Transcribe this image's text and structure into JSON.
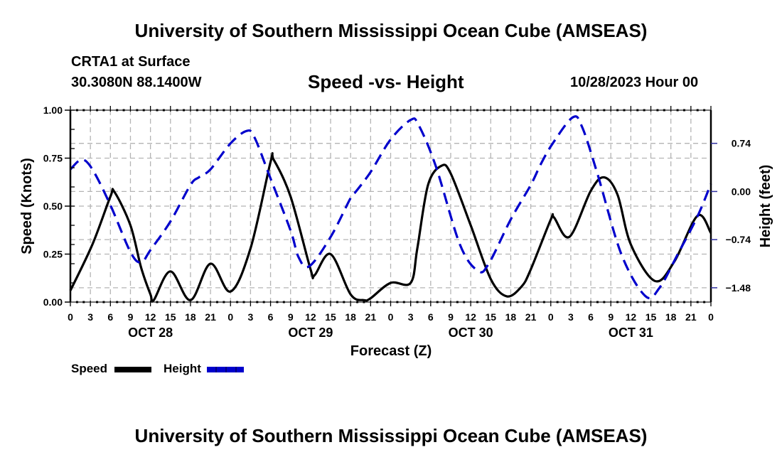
{
  "header": {
    "main_title": "University of Southern Mississippi Ocean Cube (AMSEAS)",
    "station": "CRTA1 at Surface",
    "coords": "30.3080N  88.1400W",
    "subtitle": "Speed -vs- Height",
    "datetime": "10/28/2023 Hour 00"
  },
  "footer": {
    "title": "University of Southern Mississippi Ocean Cube (AMSEAS)"
  },
  "colors": {
    "speed": "#000000",
    "height": "#0000cc",
    "grid": "#b4b4b4",
    "right_axis_ticks": "#3030a0"
  },
  "chart_data": {
    "type": "line",
    "title": "Speed -vs- Height",
    "xlabel": "Forecast (Z)",
    "ylabel": "Speed (Knots)",
    "y2label": "Height (feet)",
    "xlim": [
      0,
      96
    ],
    "ylim": [
      0,
      1.0
    ],
    "y2lim": [
      -1.7,
      1.25
    ],
    "x_tick_labels": [
      "0",
      "3",
      "6",
      "9",
      "12",
      "15",
      "18",
      "21",
      "0",
      "3",
      "6",
      "9",
      "12",
      "15",
      "18",
      "21",
      "0",
      "3",
      "6",
      "9",
      "12",
      "15",
      "18",
      "21",
      "0",
      "3",
      "6",
      "9",
      "12",
      "15",
      "18",
      "21",
      "0"
    ],
    "x_tick_hours": [
      0,
      3,
      6,
      9,
      12,
      15,
      18,
      21,
      24,
      27,
      30,
      33,
      36,
      39,
      42,
      45,
      48,
      51,
      54,
      57,
      60,
      63,
      66,
      69,
      72,
      75,
      78,
      81,
      84,
      87,
      90,
      93,
      96
    ],
    "date_labels": [
      {
        "label": "OCT 28",
        "hour": 12
      },
      {
        "label": "OCT 29",
        "hour": 36
      },
      {
        "label": "OCT 30",
        "hour": 60
      },
      {
        "label": "OCT 31",
        "hour": 84
      }
    ],
    "y_ticks": [
      {
        "label": "0.00",
        "value": 0.0
      },
      {
        "label": "0.25",
        "value": 0.25
      },
      {
        "label": "0.50",
        "value": 0.5
      },
      {
        "label": "0.75",
        "value": 0.75
      },
      {
        "label": "1.00",
        "value": 1.0
      }
    ],
    "y2_ticks": [
      {
        "label": "0.74",
        "value": 0.74
      },
      {
        "label": "0.00",
        "value": 0.0
      },
      {
        "label": "−0.74",
        "value": -0.74
      },
      {
        "label": "−1.48",
        "value": -1.48
      }
    ],
    "grid": true,
    "legend": {
      "placement": "bottom-left",
      "entries": [
        "Speed",
        "Height"
      ]
    },
    "series": [
      {
        "name": "Speed",
        "axis": "left",
        "units": "knots",
        "style": "solid",
        "x": [
          0,
          3.3,
          6,
          6.6,
          9,
          10.6,
          12,
          12.5,
          15,
          18,
          21,
          24,
          27,
          30,
          30.5,
          33,
          36,
          36.6,
          39,
          42,
          44,
          45,
          48,
          51,
          52,
          53.6,
          55.6,
          57,
          60,
          63,
          65.4,
          67.6,
          69,
          72,
          72.5,
          74.8,
          78,
          80,
          82,
          84,
          87.6,
          90.5,
          94,
          96
        ],
        "values": [
          0.06,
          0.3,
          0.55,
          0.574,
          0.4,
          0.18,
          0.04,
          0.01,
          0.16,
          0.01,
          0.2,
          0.055,
          0.28,
          0.73,
          0.74,
          0.55,
          0.17,
          0.14,
          0.25,
          0.04,
          0.01,
          0.02,
          0.1,
          0.1,
          0.28,
          0.61,
          0.71,
          0.67,
          0.4,
          0.12,
          0.03,
          0.08,
          0.17,
          0.43,
          0.44,
          0.34,
          0.58,
          0.65,
          0.56,
          0.3,
          0.11,
          0.21,
          0.45,
          0.36
        ]
      },
      {
        "name": "Height",
        "axis": "right",
        "units": "feet",
        "style": "dashed",
        "x": [
          0,
          1.7,
          3.3,
          6,
          9,
          10.6,
          12,
          15,
          18,
          19.3,
          21,
          24,
          26.4,
          27.6,
          30,
          33,
          34.2,
          35.8,
          39,
          42,
          42.8,
          45,
          48,
          51,
          52.2,
          54.8,
          58.4,
          61.1,
          62.7,
          66,
          69,
          70.5,
          72.3,
          75.3,
          76.7,
          79,
          82.6,
          86.2,
          88.3,
          91,
          94,
          96
        ],
        "values": [
          0.34,
          0.49,
          0.34,
          -0.21,
          -0.93,
          -1.09,
          -0.9,
          -0.46,
          0.1,
          0.22,
          0.34,
          0.74,
          0.93,
          0.83,
          0.2,
          -0.6,
          -1.01,
          -1.15,
          -0.7,
          -0.1,
          0.0,
          0.3,
          0.8,
          1.1,
          1.02,
          0.38,
          -0.82,
          -1.22,
          -1.11,
          -0.43,
          0.1,
          0.42,
          0.74,
          1.14,
          0.99,
          0.27,
          -0.97,
          -1.61,
          -1.48,
          -0.97,
          -0.38,
          0.12
        ]
      }
    ]
  }
}
